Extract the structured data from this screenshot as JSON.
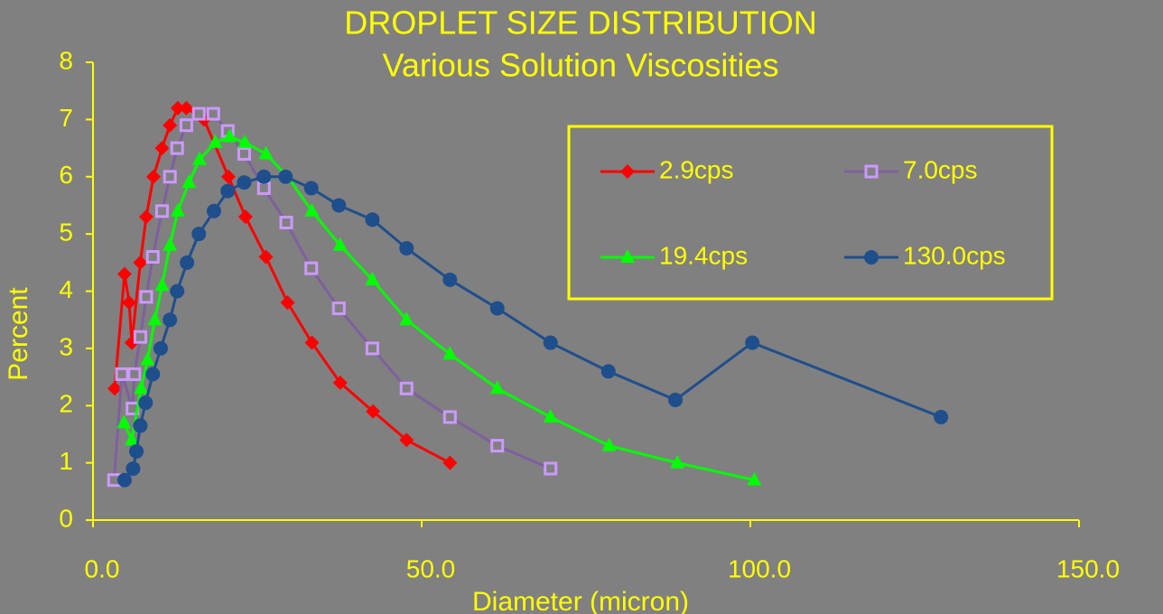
{
  "chart_data": {
    "type": "line",
    "title": "DROPLET SIZE DISTRIBUTION",
    "subtitle": "Various Solution Viscosities",
    "x_label": "Diameter (micron)",
    "y_label": "Percent",
    "xlim": [
      0,
      150
    ],
    "ylim": [
      0,
      8
    ],
    "xticks": [
      {
        "value": 0,
        "label": "0.0"
      },
      {
        "value": 50,
        "label": "50.0"
      },
      {
        "value": 100,
        "label": "100.0"
      },
      {
        "value": 150,
        "label": "150.0"
      }
    ],
    "yticks": [
      0,
      1,
      2,
      3,
      4,
      5,
      6,
      7,
      8
    ],
    "grid": false,
    "legend": "upper right",
    "axis_color": "#ffff00",
    "series": [
      {
        "name": "2.9cps",
        "color": "#ff0000",
        "marker": "diamond",
        "marker_color": "#ff0000",
        "x": [
          3.3,
          4.8,
          5.5,
          5.9,
          7.2,
          8.1,
          9.2,
          10.5,
          11.7,
          12.9,
          14.2,
          16.9,
          20.6,
          23.2,
          26.3,
          29.6,
          33.3,
          37.6,
          42.6,
          47.7,
          54.3
        ],
        "values": [
          2.3,
          4.3,
          3.8,
          3.1,
          4.5,
          5.3,
          6.0,
          6.5,
          6.9,
          7.2,
          7.2,
          7.0,
          6.0,
          5.3,
          4.6,
          3.8,
          3.1,
          2.4,
          1.9,
          1.4,
          1.0
        ]
      },
      {
        "name": "7.0cps",
        "color": "#7f5f9f",
        "marker": "square",
        "marker_color": "#cc99ff",
        "x": [
          3.2,
          4.4,
          6.0,
          6.3,
          7.2,
          8.1,
          9.1,
          10.5,
          11.7,
          12.8,
          14.2,
          16.1,
          18.3,
          20.5,
          23.0,
          26.0,
          29.4,
          33.2,
          37.4,
          42.5,
          47.7,
          54.3,
          61.5,
          69.6
        ],
        "values": [
          0.7,
          2.55,
          1.95,
          2.55,
          3.2,
          3.9,
          4.6,
          5.4,
          6.0,
          6.5,
          6.9,
          7.1,
          7.1,
          6.8,
          6.4,
          5.8,
          5.2,
          4.4,
          3.7,
          3.0,
          2.3,
          1.8,
          1.3,
          0.9
        ]
      },
      {
        "name": "19.4cps",
        "color": "#00ff00",
        "marker": "triangle",
        "marker_color": "#00ff00",
        "x": [
          4.7,
          5.9,
          7.3,
          8.3,
          9.4,
          10.5,
          11.7,
          12.9,
          14.6,
          16.2,
          18.6,
          20.8,
          23.1,
          26.3,
          29.6,
          33.3,
          37.6,
          42.5,
          47.7,
          54.3,
          61.5,
          69.6,
          78.5,
          88.9,
          100.6
        ],
        "values": [
          1.7,
          1.4,
          2.3,
          2.8,
          3.5,
          4.1,
          4.8,
          5.4,
          5.9,
          6.3,
          6.6,
          6.7,
          6.6,
          6.4,
          6.0,
          5.4,
          4.8,
          4.2,
          3.5,
          2.9,
          2.3,
          1.8,
          1.3,
          1.0,
          0.7
        ]
      },
      {
        "name": "130.0cps",
        "color": "#1f4e8c",
        "marker": "circle",
        "marker_color": "#1f4e8c",
        "x": [
          4.8,
          6.1,
          6.6,
          7.2,
          8.0,
          9.1,
          10.3,
          11.7,
          12.8,
          14.3,
          16.1,
          18.4,
          20.5,
          23.0,
          26.0,
          29.3,
          33.2,
          37.4,
          42.5,
          47.7,
          54.3,
          61.5,
          69.6,
          78.4,
          88.6,
          100.3,
          129.0
        ],
        "values": [
          0.7,
          0.9,
          1.2,
          1.65,
          2.05,
          2.55,
          3.0,
          3.5,
          4.0,
          4.5,
          5.0,
          5.4,
          5.75,
          5.9,
          6.0,
          6.0,
          5.8,
          5.5,
          5.25,
          4.75,
          4.2,
          3.7,
          3.1,
          2.6,
          2.1,
          3.1,
          1.8
        ]
      }
    ]
  }
}
